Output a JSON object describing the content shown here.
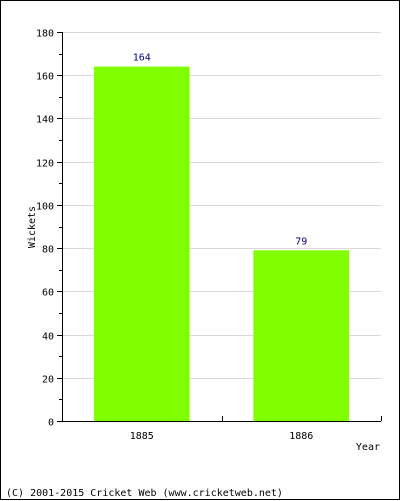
{
  "chart_data": {
    "type": "bar",
    "categories": [
      "1885",
      "1886"
    ],
    "values": [
      164,
      79
    ],
    "data_labels": [
      "164",
      "79"
    ],
    "xlabel": "Year",
    "ylabel": "Wickets",
    "ylim": [
      0,
      180
    ],
    "yticks": [
      0,
      20,
      40,
      60,
      80,
      100,
      120,
      140,
      160,
      180
    ],
    "grid": true,
    "bar_color": "#80ff00",
    "data_label_color": "#000080"
  },
  "footer": {
    "copyright": "(C) 2001-2015 Cricket Web (www.cricketweb.net)"
  }
}
